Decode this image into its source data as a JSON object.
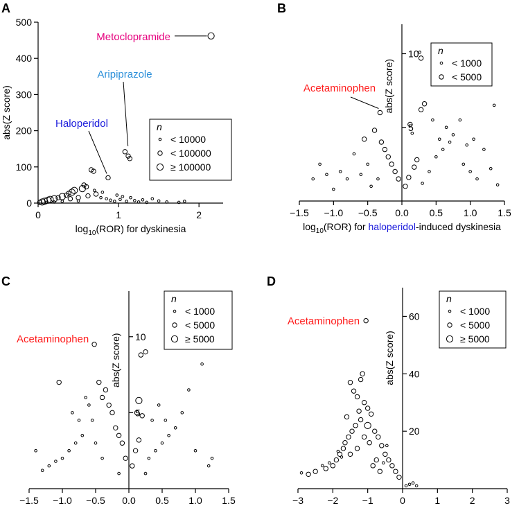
{
  "figure": {
    "panels": [
      "A",
      "B",
      "C",
      "D"
    ]
  },
  "colors": {
    "axis": "#000000",
    "marker": "#000000",
    "metoclopramide": "#e6007e",
    "aripiprazole": "#2b8fd9",
    "haloperidol": "#1a1adb",
    "acetaminophen": "#ff1a1a"
  },
  "chart_data": [
    {
      "panel": "A",
      "type": "scatter",
      "title": "",
      "xlabel": "log10(ROR) for dyskinesia",
      "xlabel_parts": [
        {
          "text": "log",
          "style": "normal",
          "color": "#000000"
        },
        {
          "text": "10",
          "style": "sub",
          "color": "#000000"
        },
        {
          "text": "(ROR) for dyskinesia",
          "style": "normal",
          "color": "#000000"
        }
      ],
      "ylabel": "abs(Z score)",
      "xlim": [
        0,
        2.3
      ],
      "ylim": [
        0,
        500
      ],
      "xticks": [
        0,
        1,
        2
      ],
      "yticks": [
        0,
        100,
        200,
        300,
        400,
        500
      ],
      "legend": {
        "title": "n",
        "position": "right",
        "entries": [
          "< 10000",
          "< 100000",
          "≥ 100000"
        ]
      },
      "annotations": [
        {
          "text": "Metoclopramide",
          "x": 2.15,
          "y": 462,
          "color": "#e6007e"
        },
        {
          "text": "Aripiprazole",
          "x": 1.1,
          "y": 142,
          "color": "#2b8fd9"
        },
        {
          "text": "Haloperidol",
          "x": 0.87,
          "y": 70,
          "color": "#1a1adb"
        }
      ],
      "points": [
        [
          2.15,
          462,
          3
        ],
        [
          1.08,
          142,
          2
        ],
        [
          1.12,
          130,
          2
        ],
        [
          1.14,
          123,
          2
        ],
        [
          0.87,
          70,
          2
        ],
        [
          0.66,
          92,
          2
        ],
        [
          0.69,
          88,
          2
        ],
        [
          0.57,
          50,
          2
        ],
        [
          0.6,
          45,
          2
        ],
        [
          0.55,
          40,
          3
        ],
        [
          0.45,
          35,
          3
        ],
        [
          0.42,
          30,
          3
        ],
        [
          0.38,
          27,
          2
        ],
        [
          0.35,
          22,
          2
        ],
        [
          0.3,
          18,
          3
        ],
        [
          0.25,
          15,
          2
        ],
        [
          0.2,
          12,
          3
        ],
        [
          0.15,
          10,
          3
        ],
        [
          0.12,
          8,
          3
        ],
        [
          0.08,
          5,
          3
        ],
        [
          0.05,
          3,
          3
        ],
        [
          0.02,
          2,
          2
        ],
        [
          0.4,
          12,
          2
        ],
        [
          0.5,
          15,
          2
        ],
        [
          0.62,
          20,
          2
        ],
        [
          0.72,
          25,
          2
        ],
        [
          0.78,
          15,
          1
        ],
        [
          0.85,
          12,
          1
        ],
        [
          0.9,
          8,
          1
        ],
        [
          0.95,
          5,
          1
        ],
        [
          1.02,
          10,
          1
        ],
        [
          1.05,
          18,
          1
        ],
        [
          1.1,
          5,
          1
        ],
        [
          1.2,
          7,
          1
        ],
        [
          1.3,
          9,
          1
        ],
        [
          1.42,
          12,
          1
        ],
        [
          1.5,
          6,
          1
        ],
        [
          1.6,
          3,
          1
        ],
        [
          1.75,
          2,
          1
        ],
        [
          1.82,
          5,
          1
        ],
        [
          1.25,
          3,
          1
        ],
        [
          1.35,
          2,
          1
        ],
        [
          0.98,
          22,
          1
        ],
        [
          0.8,
          30,
          1
        ],
        [
          0.7,
          35,
          1
        ],
        [
          1.15,
          15,
          1
        ],
        [
          0.3,
          5,
          1
        ],
        [
          0.2,
          3,
          1
        ],
        [
          0.1,
          2,
          1
        ],
        [
          0.5,
          6,
          1
        ]
      ]
    },
    {
      "panel": "B",
      "type": "scatter",
      "title": "",
      "xlabel": "log10(ROR) for haloperidol-induced dyskinesia",
      "xlabel_parts": [
        {
          "text": "log",
          "style": "normal",
          "color": "#000000"
        },
        {
          "text": "10",
          "style": "sub",
          "color": "#000000"
        },
        {
          "text": "(ROR) for ",
          "style": "normal",
          "color": "#000000"
        },
        {
          "text": "haloperidol",
          "style": "normal",
          "color": "#1a1adb"
        },
        {
          "text": "-induced dyskinesia",
          "style": "normal",
          "color": "#000000"
        }
      ],
      "ylabel": "abs(Z score)",
      "xlim": [
        -1.5,
        1.5
      ],
      "ylim": [
        0,
        12
      ],
      "xticks": [
        -1.5,
        -1.0,
        -0.5,
        0.0,
        0.5,
        1.0,
        1.5
      ],
      "xtick_labels": [
        "−1.5",
        "−1.0",
        "−0.5",
        "0.0",
        "0.5",
        "1.0",
        "1.5"
      ],
      "yticks": [
        5,
        10
      ],
      "legend": {
        "title": "n",
        "position": "top-right",
        "entries": [
          "< 1000",
          "< 5000"
        ]
      },
      "annotations": [
        {
          "text": "Acetaminophen",
          "x": -0.32,
          "y": 6.0,
          "color": "#ff1a1a"
        }
      ],
      "points": [
        [
          -0.32,
          6.0,
          2
        ],
        [
          0.28,
          9.7,
          2
        ],
        [
          0.26,
          10.1,
          1
        ],
        [
          0.33,
          6.6,
          2
        ],
        [
          0.28,
          6.2,
          2
        ],
        [
          0.8,
          10.5,
          1
        ],
        [
          1.35,
          6.5,
          1
        ],
        [
          0.12,
          5.2,
          2
        ],
        [
          0.15,
          4.6,
          1
        ],
        [
          -0.4,
          4.8,
          2
        ],
        [
          -0.55,
          4.2,
          2
        ],
        [
          -0.3,
          4.0,
          2
        ],
        [
          -0.25,
          3.5,
          2
        ],
        [
          -0.2,
          3.0,
          2
        ],
        [
          -0.15,
          2.5,
          2
        ],
        [
          -0.1,
          2.0,
          2
        ],
        [
          -0.05,
          1.5,
          2
        ],
        [
          0.05,
          1.0,
          2
        ],
        [
          0.1,
          1.6,
          2
        ],
        [
          0.18,
          2.3,
          2
        ],
        [
          0.22,
          2.8,
          2
        ],
        [
          -0.9,
          2.0,
          1
        ],
        [
          -1.1,
          1.8,
          1
        ],
        [
          -1.2,
          2.5,
          1
        ],
        [
          -0.7,
          3.2,
          1
        ],
        [
          -0.8,
          1.5,
          1
        ],
        [
          0.5,
          3.0,
          1
        ],
        [
          0.6,
          3.5,
          1
        ],
        [
          0.7,
          4.0,
          1
        ],
        [
          0.9,
          2.5,
          1
        ],
        [
          1.0,
          2.0,
          1
        ],
        [
          1.1,
          1.5,
          1
        ],
        [
          1.2,
          3.5,
          1
        ],
        [
          1.3,
          2.2,
          1
        ],
        [
          1.4,
          1.1,
          1
        ],
        [
          0.4,
          2.0,
          1
        ],
        [
          0.3,
          1.2,
          1
        ],
        [
          -0.5,
          2.5,
          1
        ],
        [
          -0.6,
          1.8,
          1
        ],
        [
          -0.35,
          1.5,
          1
        ],
        [
          -0.45,
          1.0,
          1
        ],
        [
          0.65,
          5.0,
          1
        ],
        [
          0.75,
          4.5,
          1
        ],
        [
          0.55,
          4.2,
          1
        ],
        [
          0.85,
          5.5,
          1
        ],
        [
          0.95,
          3.8,
          1
        ],
        [
          1.05,
          4.2,
          1
        ],
        [
          -1.3,
          1.5,
          1
        ],
        [
          -1.0,
          0.8,
          1
        ],
        [
          0.45,
          5.5,
          1
        ]
      ]
    },
    {
      "panel": "C",
      "type": "scatter",
      "title": "",
      "xlabel": "log10(ROR) for aripiprazole-induced dyskinesia",
      "xlabel_parts": [
        {
          "text": "log",
          "style": "normal",
          "color": "#000000"
        },
        {
          "text": "10",
          "style": "sub",
          "color": "#000000"
        },
        {
          "text": "(ROR) for ",
          "style": "normal",
          "color": "#000000"
        },
        {
          "text": "aripiprazole",
          "style": "normal",
          "color": "#2b8fd9"
        },
        {
          "text": "-induced dyskinesia",
          "style": "normal",
          "color": "#000000"
        }
      ],
      "ylabel": "abs(Z score)",
      "xlim": [
        -1.5,
        1.5
      ],
      "ylim": [
        0,
        13
      ],
      "xticks": [
        -1.5,
        -1.0,
        -0.5,
        0.0,
        0.5,
        1.0,
        1.5
      ],
      "xtick_labels": [
        "−1.5",
        "−1.0",
        "−0.5",
        "0.0",
        "0.5",
        "1.0",
        "1.5"
      ],
      "yticks": [
        5,
        10
      ],
      "legend": {
        "title": "n",
        "position": "top-right",
        "entries": [
          "< 1000",
          "< 5000",
          "≥ 5000"
        ]
      },
      "annotations": [
        {
          "text": "Acetaminophen",
          "x": -0.52,
          "y": 9.5,
          "color": "#ff1a1a"
        }
      ],
      "points": [
        [
          -0.52,
          9.5,
          2
        ],
        [
          -1.05,
          7.0,
          2
        ],
        [
          0.18,
          8.8,
          2
        ],
        [
          0.25,
          9.0,
          2
        ],
        [
          1.1,
          8.2,
          1
        ],
        [
          0.15,
          5.8,
          3
        ],
        [
          0.12,
          5.0,
          2
        ],
        [
          0.2,
          4.8,
          2
        ],
        [
          -0.45,
          7.0,
          2
        ],
        [
          -0.35,
          6.5,
          2
        ],
        [
          -0.4,
          6.0,
          2
        ],
        [
          -0.3,
          5.5,
          2
        ],
        [
          -0.25,
          5.0,
          2
        ],
        [
          -0.2,
          4.0,
          2
        ],
        [
          -0.15,
          3.5,
          2
        ],
        [
          -0.1,
          3.0,
          2
        ],
        [
          -0.05,
          2.0,
          2
        ],
        [
          0.05,
          1.5,
          2
        ],
        [
          0.1,
          2.5,
          2
        ],
        [
          0.15,
          3.2,
          2
        ],
        [
          -0.55,
          4.5,
          1
        ],
        [
          -0.7,
          3.5,
          1
        ],
        [
          -0.8,
          3.0,
          1
        ],
        [
          -0.9,
          2.5,
          1
        ],
        [
          -1.0,
          2.0,
          1
        ],
        [
          -1.1,
          1.8,
          1
        ],
        [
          -1.2,
          1.5,
          1
        ],
        [
          -1.3,
          1.2,
          1
        ],
        [
          -1.4,
          2.5,
          1
        ],
        [
          0.3,
          2.0,
          1
        ],
        [
          0.4,
          2.5,
          1
        ],
        [
          0.5,
          3.0,
          1
        ],
        [
          0.6,
          3.5,
          1
        ],
        [
          0.7,
          4.0,
          1
        ],
        [
          0.8,
          5.0,
          1
        ],
        [
          0.9,
          6.5,
          1
        ],
        [
          1.0,
          2.5,
          1
        ],
        [
          1.2,
          1.5,
          1
        ],
        [
          1.25,
          2.0,
          1
        ],
        [
          0.35,
          4.5,
          1
        ],
        [
          0.45,
          5.5,
          1
        ],
        [
          0.55,
          4.5,
          1
        ],
        [
          -0.6,
          5.5,
          1
        ],
        [
          -0.65,
          6.0,
          1
        ],
        [
          -0.75,
          4.5,
          1
        ],
        [
          -0.85,
          5.0,
          1
        ],
        [
          -0.5,
          3.0,
          1
        ],
        [
          -0.4,
          2.0,
          1
        ],
        [
          0.25,
          1.0,
          1
        ],
        [
          -0.15,
          1.0,
          1
        ]
      ]
    },
    {
      "panel": "D",
      "type": "scatter",
      "title": "",
      "xlabel": "log10(ROR) for metoclopramide-induced dyskinesia",
      "xlabel_parts": [
        {
          "text": "log",
          "style": "normal",
          "color": "#000000"
        },
        {
          "text": "10",
          "style": "sub",
          "color": "#000000"
        },
        {
          "text": "(ROR) for ",
          "style": "normal",
          "color": "#000000"
        },
        {
          "text": "metoclopramide",
          "style": "normal",
          "color": "#e6007e"
        },
        {
          "text": "-induced dyskinesia",
          "style": "normal",
          "color": "#000000"
        }
      ],
      "ylabel": "abs(Z score)",
      "xlim": [
        -3,
        3
      ],
      "ylim": [
        0,
        70
      ],
      "xticks": [
        -3,
        -2,
        -1,
        0,
        1,
        2,
        3
      ],
      "xtick_labels": [
        "−3",
        "−2",
        "−1",
        "0",
        "1",
        "2",
        "3"
      ],
      "yticks": [
        20,
        40,
        60
      ],
      "legend": {
        "title": "n",
        "position": "top-left",
        "entries": [
          "< 1000",
          "< 5000",
          "≥ 5000"
        ]
      },
      "annotations": [
        {
          "text": "Acetaminophen",
          "x": -1.05,
          "y": 58.5,
          "color": "#ff1a1a"
        }
      ],
      "points": [
        [
          -1.05,
          58.5,
          2
        ],
        [
          -1.15,
          40.0,
          2
        ],
        [
          -1.2,
          38.0,
          2
        ],
        [
          -1.5,
          37.0,
          2
        ],
        [
          -1.4,
          34.0,
          2
        ],
        [
          -1.3,
          32.0,
          2
        ],
        [
          -1.1,
          30.0,
          2
        ],
        [
          -1.0,
          28.0,
          2
        ],
        [
          -0.9,
          26.0,
          2
        ],
        [
          -1.6,
          25.0,
          2
        ],
        [
          -1.25,
          27.0,
          2
        ],
        [
          -1.35,
          22.0,
          2
        ],
        [
          -1.45,
          20.0,
          2
        ],
        [
          -1.55,
          18.0,
          2
        ],
        [
          -1.65,
          16.0,
          2
        ],
        [
          -1.7,
          14.0,
          2
        ],
        [
          -1.8,
          12.0,
          2
        ],
        [
          -1.9,
          10.0,
          2
        ],
        [
          -2.0,
          8.0,
          2
        ],
        [
          -2.2,
          7.0,
          2
        ],
        [
          -2.5,
          6.0,
          2
        ],
        [
          -2.7,
          5.0,
          2
        ],
        [
          -2.9,
          5.5,
          1
        ],
        [
          -0.8,
          20.0,
          2
        ],
        [
          -0.7,
          18.0,
          2
        ],
        [
          -0.6,
          15.0,
          2
        ],
        [
          -0.5,
          12.0,
          2
        ],
        [
          -0.4,
          10.0,
          2
        ],
        [
          -0.3,
          8.0,
          2
        ],
        [
          -0.2,
          6.0,
          2
        ],
        [
          -0.1,
          4.0,
          2
        ],
        [
          -1.0,
          22.0,
          3
        ],
        [
          -1.2,
          24.0,
          2
        ],
        [
          -1.1,
          18.0,
          2
        ],
        [
          -0.95,
          16.0,
          2
        ],
        [
          -1.3,
          14.0,
          2
        ],
        [
          -1.5,
          12.0,
          2
        ],
        [
          -0.75,
          10.0,
          2
        ],
        [
          -0.85,
          8.0,
          2
        ],
        [
          -0.65,
          6.0,
          2
        ],
        [
          0.1,
          1.0,
          1
        ],
        [
          0.2,
          1.5,
          1
        ],
        [
          0.3,
          2.0,
          1
        ],
        [
          0.4,
          1.0,
          1
        ],
        [
          -2.3,
          8.0,
          1
        ],
        [
          -2.1,
          9.0,
          1
        ],
        [
          -1.75,
          11.0,
          1
        ],
        [
          -1.85,
          13.0,
          1
        ],
        [
          -0.45,
          15.0,
          1
        ],
        [
          -0.55,
          9.0,
          1
        ]
      ]
    }
  ]
}
